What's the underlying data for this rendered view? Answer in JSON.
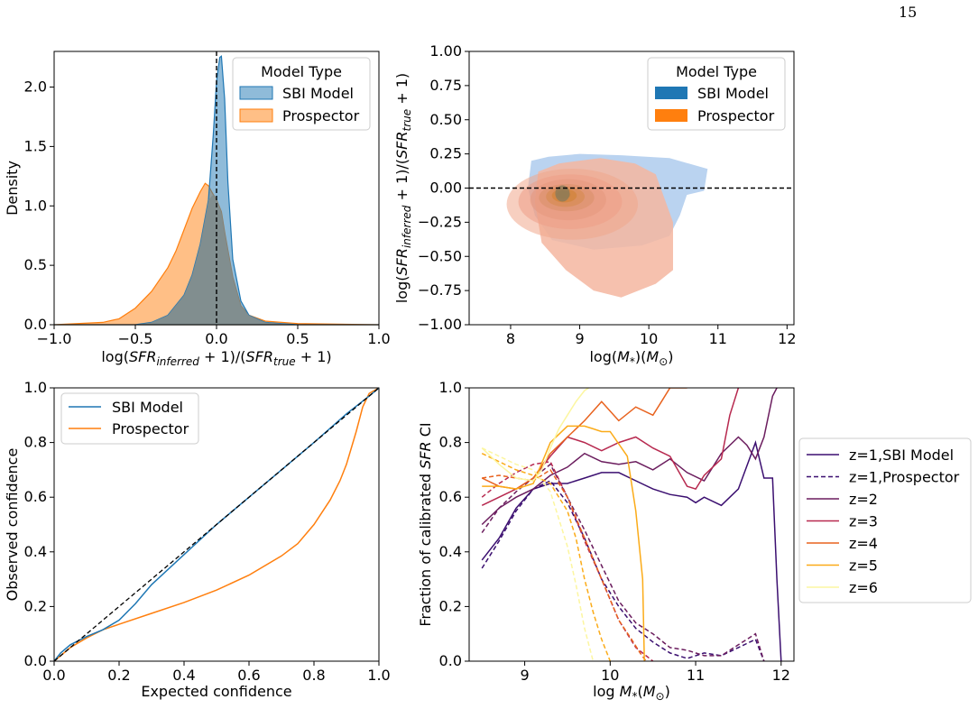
{
  "page_number": "15",
  "colors": {
    "sbi": "#1f77b4",
    "prospector": "#ff7f0e",
    "grey_overlap": "#7f8c8d",
    "z2": "#6b1d5e",
    "z3": "#b7294f",
    "z4": "#e8621e",
    "z5": "#fbab18",
    "z6": "#fcf6a0",
    "z1": "#3b0f70"
  },
  "chart_data": [
    {
      "id": "density",
      "type": "area",
      "xlabel": "log(SFR_inferred+1)/(SFR_true+1)",
      "ylabel": "Density",
      "xlim": [
        -1.0,
        1.0
      ],
      "ylim": [
        0,
        2.3
      ],
      "xticks": [
        "−1.0",
        "−0.5",
        "0.0",
        "0.5",
        "1.0"
      ],
      "yticks": [
        "0.0",
        "0.5",
        "1.0",
        "1.5",
        "2.0"
      ],
      "vline": 0.0,
      "legend": {
        "title": "Model Type",
        "placement": "top-right",
        "entries": [
          "SBI Model",
          "Prospector"
        ]
      },
      "series": [
        {
          "name": "SBI Model",
          "x": [
            -1.0,
            -0.5,
            -0.4,
            -0.3,
            -0.2,
            -0.15,
            -0.1,
            -0.05,
            -0.02,
            0.0,
            0.02,
            0.03,
            0.05,
            0.07,
            0.1,
            0.15,
            0.2,
            0.3,
            0.4,
            0.5,
            1.0
          ],
          "values": [
            0,
            0.0,
            0.02,
            0.08,
            0.25,
            0.42,
            0.68,
            1.05,
            1.6,
            2.05,
            2.25,
            2.26,
            1.9,
            1.2,
            0.55,
            0.2,
            0.08,
            0.02,
            0.01,
            0.0,
            0
          ]
        },
        {
          "name": "Prospector",
          "x": [
            -1.0,
            -0.7,
            -0.6,
            -0.5,
            -0.4,
            -0.3,
            -0.25,
            -0.2,
            -0.15,
            -0.1,
            -0.07,
            -0.05,
            -0.03,
            0.0,
            0.03,
            0.05,
            0.1,
            0.15,
            0.2,
            0.3,
            0.5,
            1.0
          ],
          "values": [
            0,
            0.02,
            0.05,
            0.14,
            0.28,
            0.48,
            0.62,
            0.8,
            0.98,
            1.12,
            1.19,
            1.17,
            1.12,
            1.05,
            0.95,
            0.78,
            0.4,
            0.16,
            0.08,
            0.03,
            0.01,
            0
          ]
        }
      ]
    },
    {
      "id": "mass-residual",
      "type": "scatter",
      "xlabel": "log(M*)(M⊙)",
      "ylabel": "log(SFR_inferred+1)/(SFR_true+1)",
      "xlim": [
        7.4,
        12.1
      ],
      "ylim": [
        -1.0,
        1.0
      ],
      "xticks": [
        "8",
        "9",
        "10",
        "11",
        "12"
      ],
      "yticks": [
        "1.00",
        "0.75",
        "0.50",
        "0.25",
        "0.00",
        "−0.25",
        "−0.50",
        "−0.75",
        "−1.00"
      ],
      "hline": 0.0,
      "legend": {
        "title": "Model Type",
        "placement": "top-right",
        "entries": [
          "SBI Model",
          "Prospector"
        ]
      },
      "contour_center": {
        "x": 8.75,
        "y": -0.04
      }
    },
    {
      "id": "calibration",
      "type": "line",
      "xlabel": "Expected confidence",
      "ylabel": "Observed confidence",
      "xlim": [
        0,
        1
      ],
      "ylim": [
        0,
        1
      ],
      "xticks": [
        "0.0",
        "0.2",
        "0.4",
        "0.6",
        "0.8",
        "1.0"
      ],
      "yticks": [
        "0.0",
        "0.2",
        "0.4",
        "0.6",
        "0.8",
        "1.0"
      ],
      "legend": {
        "placement": "top-left",
        "entries": [
          "SBI Model",
          "Prospector"
        ]
      },
      "series": [
        {
          "name": "SBI Model",
          "x": [
            0,
            0.02,
            0.05,
            0.1,
            0.15,
            0.2,
            0.25,
            0.3,
            0.4,
            0.5,
            0.6,
            0.7,
            0.8,
            0.9,
            0.97,
            1.0
          ],
          "values": [
            0,
            0.03,
            0.06,
            0.09,
            0.115,
            0.15,
            0.21,
            0.28,
            0.39,
            0.5,
            0.6,
            0.7,
            0.8,
            0.905,
            0.97,
            1.0
          ]
        },
        {
          "name": "Prospector",
          "x": [
            0,
            0.02,
            0.05,
            0.1,
            0.15,
            0.2,
            0.3,
            0.4,
            0.5,
            0.6,
            0.7,
            0.75,
            0.8,
            0.85,
            0.88,
            0.9,
            0.93,
            0.95,
            0.97,
            1.0
          ],
          "values": [
            0,
            0.02,
            0.05,
            0.085,
            0.115,
            0.135,
            0.175,
            0.215,
            0.26,
            0.315,
            0.385,
            0.43,
            0.5,
            0.59,
            0.66,
            0.72,
            0.84,
            0.93,
            0.98,
            1.0
          ]
        }
      ]
    },
    {
      "id": "fraction-calibrated",
      "type": "line",
      "xlabel": "log M*(M⊙)",
      "ylabel": "Fraction of calibrated SFR CI",
      "xlim": [
        8.35,
        12.15
      ],
      "ylim": [
        0,
        1.0
      ],
      "xticks": [
        "9",
        "10",
        "11",
        "12"
      ],
      "yticks": [
        "0.0",
        "0.2",
        "0.4",
        "0.6",
        "0.8",
        "1.0"
      ],
      "legend": {
        "placement": "outside-right",
        "entries": [
          "z=1,SBI Model",
          "z=1,Prospector",
          "z=2",
          "z=3",
          "z=4",
          "z=5",
          "z=6"
        ]
      },
      "series": [
        {
          "name": "z=1,SBI Model",
          "dashed": false,
          "x": [
            8.5,
            8.7,
            8.9,
            9.1,
            9.3,
            9.5,
            9.7,
            9.9,
            10.1,
            10.3,
            10.5,
            10.7,
            10.9,
            11.0,
            11.1,
            11.3,
            11.5,
            11.7,
            11.8,
            11.9,
            11.95,
            12.0
          ],
          "values": [
            0.37,
            0.45,
            0.56,
            0.63,
            0.65,
            0.65,
            0.67,
            0.69,
            0.69,
            0.66,
            0.63,
            0.61,
            0.6,
            0.58,
            0.6,
            0.57,
            0.63,
            0.8,
            0.67,
            0.67,
            0.3,
            0.0
          ]
        },
        {
          "name": "z=1,Prospector",
          "dashed": true,
          "x": [
            8.5,
            8.7,
            8.9,
            9.1,
            9.3,
            9.5,
            9.7,
            9.9,
            10.1,
            10.3,
            10.5,
            10.7,
            10.9,
            11.1,
            11.3,
            11.5,
            11.7,
            11.8
          ],
          "values": [
            0.34,
            0.44,
            0.55,
            0.63,
            0.66,
            0.58,
            0.45,
            0.3,
            0.2,
            0.12,
            0.07,
            0.03,
            0.01,
            0.03,
            0.02,
            0.05,
            0.08,
            0.0
          ]
        },
        {
          "name": "z=2",
          "dashed": false,
          "x": [
            8.5,
            8.7,
            8.9,
            9.1,
            9.3,
            9.5,
            9.7,
            9.9,
            10.1,
            10.3,
            10.5,
            10.7,
            10.9,
            11.1,
            11.3,
            11.5,
            11.6,
            11.7,
            11.8,
            11.9,
            11.95
          ],
          "values": [
            0.5,
            0.56,
            0.6,
            0.63,
            0.68,
            0.71,
            0.76,
            0.73,
            0.72,
            0.73,
            0.7,
            0.74,
            0.69,
            0.66,
            0.76,
            0.82,
            0.79,
            0.74,
            0.82,
            0.97,
            1.0
          ]
        },
        {
          "name": "z=1,Prospector-dash-z2",
          "dashed": true,
          "x": [
            8.5,
            8.7,
            8.9,
            9.1,
            9.3,
            9.5,
            9.7,
            9.9,
            10.1,
            10.3,
            10.5,
            10.7,
            10.9,
            11.1,
            11.3,
            11.5,
            11.7,
            11.8
          ],
          "values": [
            0.47,
            0.56,
            0.62,
            0.67,
            0.72,
            0.6,
            0.48,
            0.35,
            0.22,
            0.14,
            0.1,
            0.05,
            0.04,
            0.02,
            0.02,
            0.06,
            0.1,
            0.0
          ]
        },
        {
          "name": "z=3",
          "dashed": false,
          "x": [
            8.5,
            8.7,
            8.9,
            9.1,
            9.3,
            9.5,
            9.7,
            9.9,
            10.1,
            10.3,
            10.5,
            10.7,
            10.9,
            11.0,
            11.1,
            11.3,
            11.4,
            11.5
          ],
          "values": [
            0.57,
            0.6,
            0.63,
            0.67,
            0.75,
            0.82,
            0.8,
            0.77,
            0.8,
            0.82,
            0.78,
            0.75,
            0.64,
            0.63,
            0.68,
            0.74,
            0.9,
            1.0
          ]
        },
        {
          "name": "z=3-dash",
          "dashed": true,
          "x": [
            8.5,
            8.7,
            8.9,
            9.1,
            9.3,
            9.5,
            9.7,
            9.9,
            10.1,
            10.3,
            10.5
          ],
          "values": [
            0.6,
            0.65,
            0.69,
            0.72,
            0.73,
            0.6,
            0.44,
            0.3,
            0.15,
            0.05,
            0.0
          ]
        },
        {
          "name": "z=4",
          "dashed": false,
          "x": [
            8.5,
            8.7,
            8.9,
            9.1,
            9.3,
            9.5,
            9.7,
            9.9,
            10.1,
            10.3,
            10.5,
            10.6,
            10.7,
            10.8,
            10.9
          ],
          "values": [
            0.67,
            0.64,
            0.63,
            0.67,
            0.76,
            0.82,
            0.88,
            0.95,
            0.88,
            0.93,
            0.9,
            0.95,
            1.0,
            1.0,
            1.0
          ]
        },
        {
          "name": "z=4-dash",
          "dashed": true,
          "x": [
            8.5,
            8.7,
            8.9,
            9.1,
            9.3,
            9.5,
            9.7,
            9.9,
            10.1,
            10.25,
            10.35,
            10.42
          ],
          "values": [
            0.67,
            0.68,
            0.67,
            0.66,
            0.7,
            0.6,
            0.45,
            0.3,
            0.15,
            0.08,
            0.03,
            0.0
          ]
        },
        {
          "name": "z=5",
          "dashed": false,
          "x": [
            8.5,
            8.7,
            8.9,
            9.1,
            9.3,
            9.5,
            9.7,
            9.8,
            9.9,
            10.0,
            10.2,
            10.3,
            10.38,
            10.4
          ],
          "values": [
            0.64,
            0.64,
            0.63,
            0.65,
            0.8,
            0.86,
            0.86,
            0.85,
            0.84,
            0.84,
            0.75,
            0.55,
            0.3,
            0.0
          ]
        },
        {
          "name": "z=5-dash",
          "dashed": true,
          "x": [
            8.5,
            8.7,
            8.9,
            9.1,
            9.3,
            9.5,
            9.6,
            9.7,
            9.8,
            9.9,
            10.0
          ],
          "values": [
            0.76,
            0.73,
            0.7,
            0.68,
            0.65,
            0.55,
            0.45,
            0.3,
            0.18,
            0.08,
            0.0
          ]
        },
        {
          "name": "z=6",
          "dashed": false,
          "x": [
            8.5,
            8.7,
            8.9,
            9.1,
            9.2,
            9.3,
            9.4,
            9.5,
            9.6,
            9.7,
            9.75
          ],
          "values": [
            0.78,
            0.72,
            0.67,
            0.66,
            0.7,
            0.78,
            0.85,
            0.9,
            0.95,
            0.99,
            1.0
          ]
        },
        {
          "name": "z=6-dash",
          "dashed": true,
          "x": [
            8.5,
            8.7,
            8.9,
            9.1,
            9.3,
            9.5,
            9.6,
            9.7,
            9.8
          ],
          "values": [
            0.78,
            0.75,
            0.72,
            0.7,
            0.62,
            0.42,
            0.28,
            0.12,
            0.0
          ]
        }
      ]
    }
  ]
}
